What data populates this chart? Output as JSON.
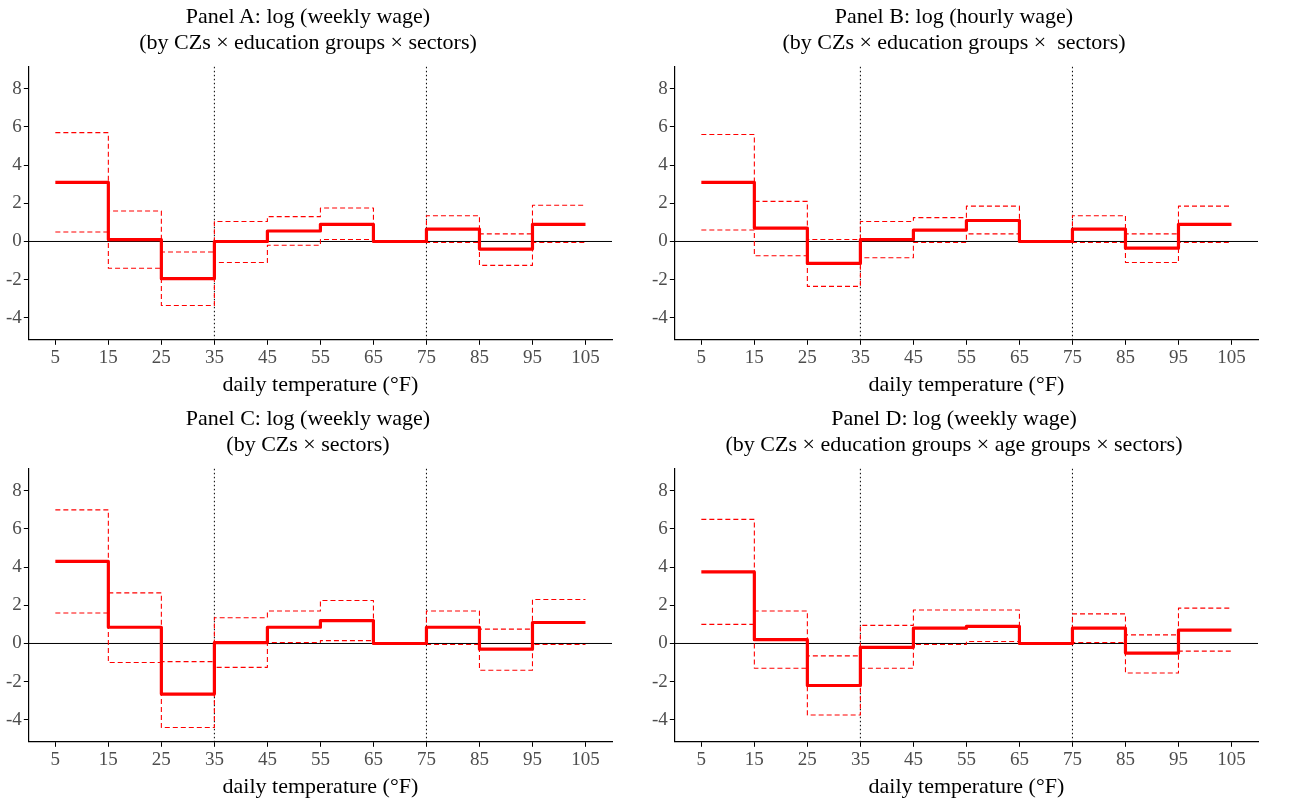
{
  "chart_data": [
    {
      "type": "step",
      "title": "Panel A: log (weekly wage)",
      "subtitle": "(by CZs × education groups × sectors)",
      "xlabel": "daily temperature (°F)",
      "x": [
        5,
        15,
        25,
        35,
        45,
        55,
        65,
        75,
        85,
        95,
        105
      ],
      "series": [
        {
          "color": "#ff0000",
          "line_style": "solid",
          "values": [
            3.1,
            0.1,
            -1.95,
            0,
            0.55,
            0.9,
            0,
            0.65,
            -0.4,
            0.9,
            0.9
          ]
        },
        {
          "color": "#ff0000",
          "line_style": "dashed",
          "values": [
            5.7,
            1.6,
            -0.55,
            1.05,
            1.3,
            1.75,
            0,
            1.35,
            0.4,
            1.9,
            1.9
          ]
        },
        {
          "color": "#ff0000",
          "line_style": "dashed",
          "values": [
            0.5,
            -1.4,
            -3.35,
            -1.1,
            -0.2,
            0.1,
            0,
            -0.05,
            -1.25,
            -0.05,
            -0.05
          ]
        }
      ],
      "xlim": [
        0,
        110
      ],
      "xticks": [
        5,
        15,
        25,
        35,
        45,
        55,
        65,
        75,
        85,
        95,
        105
      ],
      "ylim": [
        -5.15,
        9.15
      ],
      "yticks": [
        -4,
        -2,
        0,
        2,
        4,
        6,
        8
      ],
      "ref_lines": [
        {
          "axis": "x",
          "value": 35,
          "color": "#000000",
          "line_style": "dotted"
        },
        {
          "axis": "x",
          "value": 75,
          "color": "#000000",
          "line_style": "dotted"
        },
        {
          "axis": "y",
          "value": 0,
          "color": "#000000",
          "line_style": "solid"
        }
      ],
      "grid": false,
      "legend": false
    },
    {
      "type": "step",
      "title": "Panel B: log (hourly wage)",
      "subtitle": "(by CZs × education groups ×  sectors)",
      "xlabel": "daily temperature (°F)",
      "x": [
        5,
        15,
        25,
        35,
        45,
        55,
        65,
        75,
        85,
        95,
        105
      ],
      "series": [
        {
          "color": "#ff0000",
          "line_style": "solid",
          "values": [
            3.1,
            0.7,
            -1.15,
            0.1,
            0.6,
            1.1,
            0,
            0.65,
            -0.35,
            0.9,
            0.9
          ]
        },
        {
          "color": "#ff0000",
          "line_style": "dashed",
          "values": [
            5.6,
            2.1,
            0.1,
            1.05,
            1.25,
            1.85,
            0,
            1.35,
            0.4,
            1.85,
            1.85
          ]
        },
        {
          "color": "#ff0000",
          "line_style": "dashed",
          "values": [
            0.6,
            -0.75,
            -2.35,
            -0.85,
            -0.05,
            0.4,
            0,
            -0.05,
            -1.1,
            -0.05,
            -0.05
          ]
        }
      ],
      "xlim": [
        0,
        110
      ],
      "xticks": [
        5,
        15,
        25,
        35,
        45,
        55,
        65,
        75,
        85,
        95,
        105
      ],
      "ylim": [
        -5.15,
        9.15
      ],
      "yticks": [
        -4,
        -2,
        0,
        2,
        4,
        6,
        8
      ],
      "ref_lines": [
        {
          "axis": "x",
          "value": 35,
          "color": "#000000",
          "line_style": "dotted"
        },
        {
          "axis": "x",
          "value": 75,
          "color": "#000000",
          "line_style": "dotted"
        },
        {
          "axis": "y",
          "value": 0,
          "color": "#000000",
          "line_style": "solid"
        }
      ],
      "grid": false,
      "legend": false
    },
    {
      "type": "step",
      "title": "Panel C: log (weekly wage)",
      "subtitle": "(by CZs × sectors)",
      "xlabel": "daily temperature (°F)",
      "x": [
        5,
        15,
        25,
        35,
        45,
        55,
        65,
        75,
        85,
        95,
        105
      ],
      "series": [
        {
          "color": "#ff0000",
          "line_style": "solid",
          "values": [
            4.3,
            0.85,
            -2.65,
            0.05,
            0.85,
            1.2,
            0,
            0.85,
            -0.3,
            1.1,
            1.1
          ]
        },
        {
          "color": "#ff0000",
          "line_style": "dashed",
          "values": [
            7.0,
            2.65,
            -0.95,
            1.35,
            1.7,
            2.25,
            0,
            1.7,
            0.75,
            2.3,
            2.3
          ]
        },
        {
          "color": "#ff0000",
          "line_style": "dashed",
          "values": [
            1.6,
            -1.0,
            -4.4,
            -1.25,
            0.05,
            0.15,
            0,
            -0.05,
            -1.4,
            -0.05,
            -0.05
          ]
        }
      ],
      "xlim": [
        0,
        110
      ],
      "xticks": [
        5,
        15,
        25,
        35,
        45,
        55,
        65,
        75,
        85,
        95,
        105
      ],
      "ylim": [
        -5.15,
        9.15
      ],
      "yticks": [
        -4,
        -2,
        0,
        2,
        4,
        6,
        8
      ],
      "ref_lines": [
        {
          "axis": "x",
          "value": 35,
          "color": "#000000",
          "line_style": "dotted"
        },
        {
          "axis": "x",
          "value": 75,
          "color": "#000000",
          "line_style": "dotted"
        },
        {
          "axis": "y",
          "value": 0,
          "color": "#000000",
          "line_style": "solid"
        }
      ],
      "grid": false,
      "legend": false
    },
    {
      "type": "step",
      "title": "Panel D: log (weekly wage)",
      "subtitle": "(by CZs × education groups × age groups × sectors)",
      "xlabel": "daily temperature (°F)",
      "x": [
        5,
        15,
        25,
        35,
        45,
        55,
        65,
        75,
        85,
        95,
        105
      ],
      "series": [
        {
          "color": "#ff0000",
          "line_style": "solid",
          "values": [
            3.75,
            0.2,
            -2.2,
            -0.2,
            0.8,
            0.9,
            0,
            0.8,
            -0.5,
            0.7,
            0.7
          ]
        },
        {
          "color": "#ff0000",
          "line_style": "dashed",
          "values": [
            6.5,
            1.7,
            -0.65,
            0.95,
            1.75,
            1.75,
            0,
            1.55,
            0.45,
            1.85,
            1.85
          ]
        },
        {
          "color": "#ff0000",
          "line_style": "dashed",
          "values": [
            1.0,
            -1.3,
            -3.75,
            -1.3,
            -0.05,
            0.1,
            0,
            0.05,
            -1.55,
            -0.4,
            -0.4
          ]
        }
      ],
      "xlim": [
        0,
        110
      ],
      "xticks": [
        5,
        15,
        25,
        35,
        45,
        55,
        65,
        75,
        85,
        95,
        105
      ],
      "ylim": [
        -5.15,
        9.15
      ],
      "yticks": [
        -4,
        -2,
        0,
        2,
        4,
        6,
        8
      ],
      "ref_lines": [
        {
          "axis": "x",
          "value": 35,
          "color": "#000000",
          "line_style": "dotted"
        },
        {
          "axis": "x",
          "value": 75,
          "color": "#000000",
          "line_style": "dotted"
        },
        {
          "axis": "y",
          "value": 0,
          "color": "#000000",
          "line_style": "solid"
        }
      ],
      "grid": false,
      "legend": false
    }
  ]
}
